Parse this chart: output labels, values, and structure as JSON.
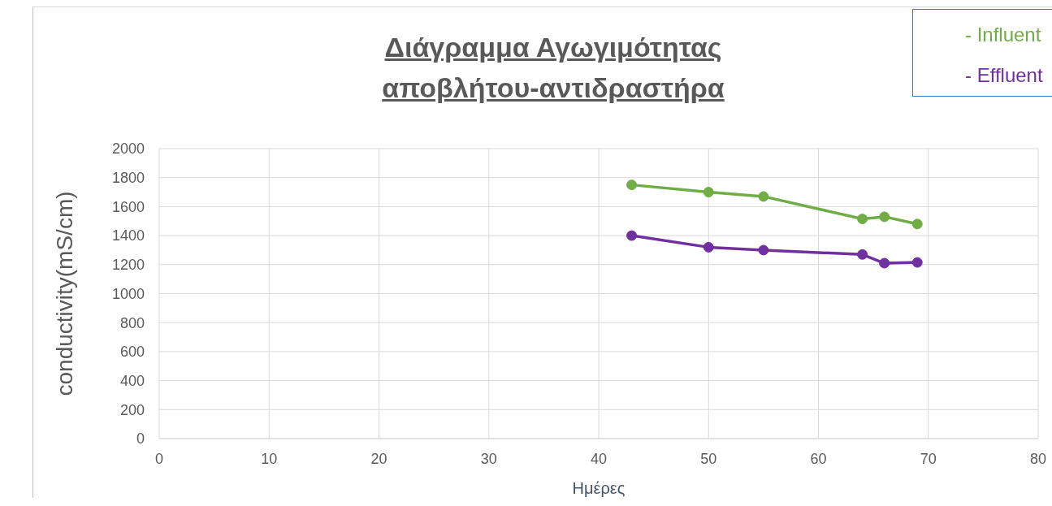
{
  "chart_data": {
    "type": "line",
    "title": "Διάγραμμα Αγωγιμότητας αποβλήτου-αντιδραστήρα",
    "xlabel": "Ημέρες",
    "ylabel": "conductivity(mS/cm)",
    "series": [
      {
        "name": "- Influent",
        "color": "#70ad47",
        "x": [
          43,
          50,
          55,
          64,
          66,
          69
        ],
        "values": [
          1750,
          1700,
          1670,
          1515,
          1530,
          1480
        ]
      },
      {
        "name": "- Effluent",
        "color": "#7030a0",
        "x": [
          43,
          50,
          55,
          64,
          66,
          69
        ],
        "values": [
          1400,
          1320,
          1300,
          1270,
          1210,
          1215
        ]
      }
    ],
    "xlim": [
      0,
      80
    ],
    "xticks": [
      0,
      10,
      20,
      30,
      40,
      50,
      60,
      70,
      80
    ],
    "ylim": [
      0,
      2000
    ],
    "yticks": [
      0,
      200,
      400,
      600,
      800,
      1000,
      1200,
      1400,
      1600,
      1800,
      2000
    ],
    "grid": true,
    "legend": "top right",
    "marker": "circle",
    "line_style": "solid"
  }
}
